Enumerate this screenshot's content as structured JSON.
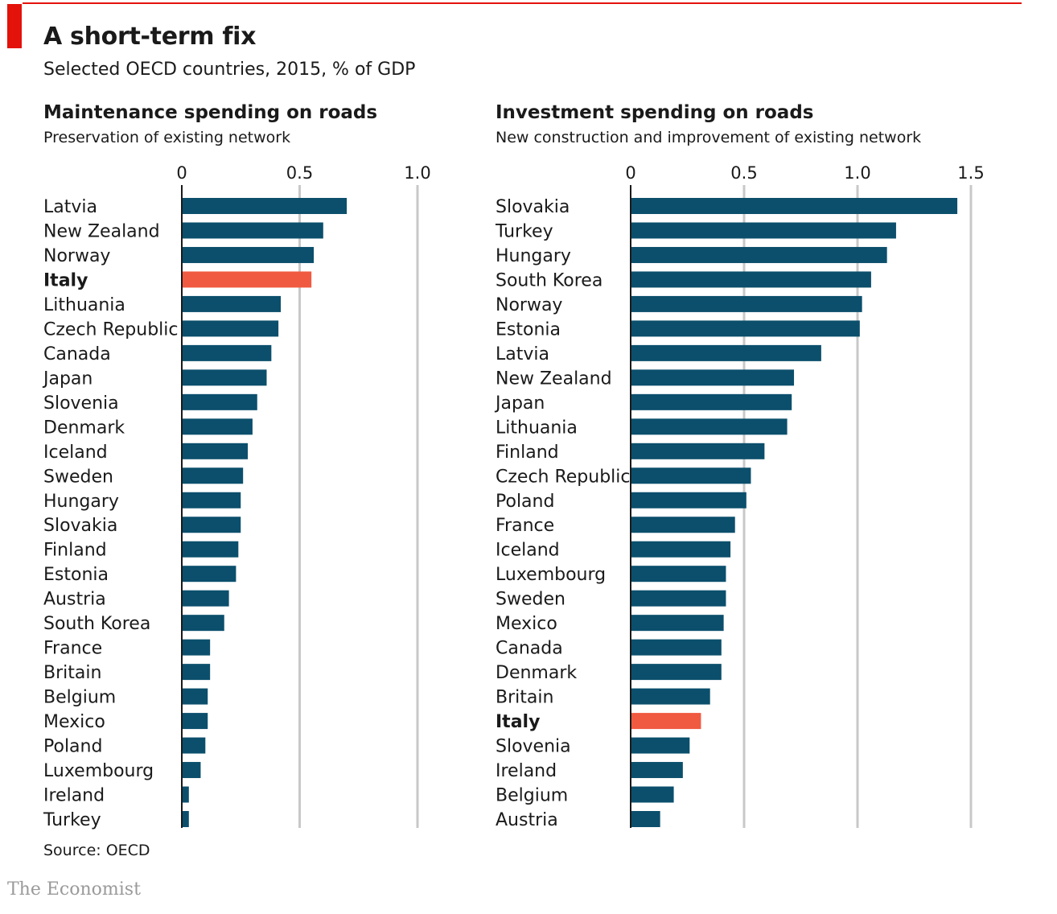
{
  "header": {
    "title": "A short-term fix",
    "subtitle": "Selected OECD countries, 2015, % of GDP"
  },
  "footer": {
    "source": "Source: OECD",
    "brand": "The Economist"
  },
  "colors": {
    "bar": "#0b4f6c",
    "highlight": "#f05a40",
    "grid": "#c8c8c8",
    "accent": "#e3120b"
  },
  "chart_data": [
    {
      "type": "bar",
      "orientation": "horizontal",
      "title": "Maintenance spending on roads",
      "subtitle": "Preservation of existing network",
      "xlim": [
        0,
        1.0
      ],
      "ticks": [
        "0",
        "0.5",
        "1.0"
      ],
      "tick_values": [
        0,
        0.5,
        1.0
      ],
      "highlight": "Italy",
      "categories": [
        "Latvia",
        "New Zealand",
        "Norway",
        "Italy",
        "Lithuania",
        "Czech Republic",
        "Canada",
        "Japan",
        "Slovenia",
        "Denmark",
        "Iceland",
        "Sweden",
        "Hungary",
        "Slovakia",
        "Finland",
        "Estonia",
        "Austria",
        "South Korea",
        "France",
        "Britain",
        "Belgium",
        "Mexico",
        "Poland",
        "Luxembourg",
        "Ireland",
        "Turkey"
      ],
      "values": [
        0.7,
        0.6,
        0.56,
        0.55,
        0.42,
        0.41,
        0.38,
        0.36,
        0.32,
        0.3,
        0.28,
        0.26,
        0.25,
        0.25,
        0.24,
        0.23,
        0.2,
        0.18,
        0.12,
        0.12,
        0.11,
        0.11,
        0.1,
        0.08,
        0.03,
        0.03
      ]
    },
    {
      "type": "bar",
      "orientation": "horizontal",
      "title": "Investment spending on roads",
      "subtitle": "New construction and improvement of existing network",
      "xlim": [
        0,
        1.5
      ],
      "ticks": [
        "0",
        "0.5",
        "1.0",
        "1.5"
      ],
      "tick_values": [
        0,
        0.5,
        1.0,
        1.5
      ],
      "highlight": "Italy",
      "categories": [
        "Slovakia",
        "Turkey",
        "Hungary",
        "South Korea",
        "Norway",
        "Estonia",
        "Latvia",
        "New Zealand",
        "Japan",
        "Lithuania",
        "Finland",
        "Czech Republic",
        "Poland",
        "France",
        "Iceland",
        "Luxembourg",
        "Sweden",
        "Mexico",
        "Canada",
        "Denmark",
        "Britain",
        "Italy",
        "Slovenia",
        "Ireland",
        "Belgium",
        "Austria"
      ],
      "values": [
        1.44,
        1.17,
        1.13,
        1.06,
        1.02,
        1.01,
        0.84,
        0.72,
        0.71,
        0.69,
        0.59,
        0.53,
        0.51,
        0.46,
        0.44,
        0.42,
        0.42,
        0.41,
        0.4,
        0.4,
        0.35,
        0.31,
        0.26,
        0.23,
        0.19,
        0.13
      ]
    }
  ]
}
